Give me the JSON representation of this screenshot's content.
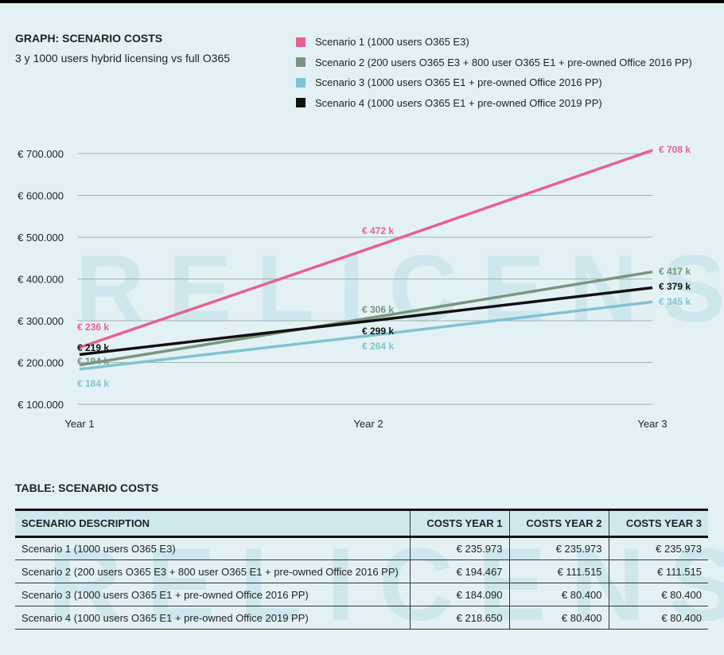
{
  "graph": {
    "title": "GRAPH: SCENARIO COSTS",
    "subtitle": "3 y 1000 users hybrid licensing vs full O365"
  },
  "watermark": "RELICENSE",
  "chart_data": {
    "type": "line",
    "title": "GRAPH: SCENARIO COSTS",
    "subtitle": "3 y 1000 users hybrid licensing vs full O365",
    "categories": [
      "Year 1",
      "Year 2",
      "Year 3"
    ],
    "ylim": [
      100000,
      700000
    ],
    "yticks": [
      100000,
      200000,
      300000,
      400000,
      500000,
      600000,
      700000
    ],
    "ytick_labels": [
      "€ 100.000",
      "€ 200.000",
      "€ 300.000",
      "€ 400.000",
      "€ 500.000",
      "€ 600.000",
      "€ 700.000"
    ],
    "grid": true,
    "legend": "top-right",
    "series": [
      {
        "name": "Scenario 1 (1000 users O365 E3)",
        "color": "#e8608f",
        "values": [
          236000,
          472000,
          708000
        ],
        "labels": [
          "€ 236 k",
          "€ 472 k",
          "€ 708 k"
        ]
      },
      {
        "name": "Scenario 2 (200 users O365 E3 + 800 user O365 E1 + pre-owned Office 2016 PP)",
        "color": "#7a957f",
        "values": [
          194000,
          306000,
          417000
        ],
        "labels": [
          "€ 194 k",
          "€ 306 k",
          "€ 417 k"
        ]
      },
      {
        "name": "Scenario 3 (1000 users O365 E1 + pre-owned Office 2016 PP)",
        "color": "#7fc3d3",
        "values": [
          184000,
          264000,
          345000
        ],
        "labels": [
          "€ 184 k",
          "€ 264 k",
          "€ 345 k"
        ]
      },
      {
        "name": "Scenario 4 (1000 users O365 E1 + pre-owned Office 2019 PP)",
        "color": "#111111",
        "values": [
          219000,
          299000,
          379000
        ],
        "labels": [
          "€ 219 k",
          "€ 299 k",
          "€ 379 k"
        ]
      }
    ]
  },
  "table": {
    "title": "TABLE: SCENARIO COSTS",
    "headers": [
      "SCENARIO DESCRIPTION",
      "COSTS YEAR 1",
      "COSTS YEAR 2",
      "COSTS YEAR 3"
    ],
    "rows": [
      [
        "Scenario 1 (1000 users O365 E3)",
        "€ 235.973",
        "€ 235.973",
        "€ 235.973"
      ],
      [
        "Scenario 2 (200 users O365 E3 + 800 user O365 E1 + pre-owned Office 2016 PP)",
        "€ 194.467",
        "€ 111.515",
        "€ 111.515"
      ],
      [
        "Scenario 3 (1000 users O365 E1 + pre-owned Office 2016 PP)",
        "€ 184.090",
        "€ 80.400",
        "€ 80.400"
      ],
      [
        "Scenario 4 (1000 users O365 E1 + pre-owned Office 2019 PP)",
        "€ 218.650",
        "€ 80.400",
        "€ 80.400"
      ]
    ]
  }
}
